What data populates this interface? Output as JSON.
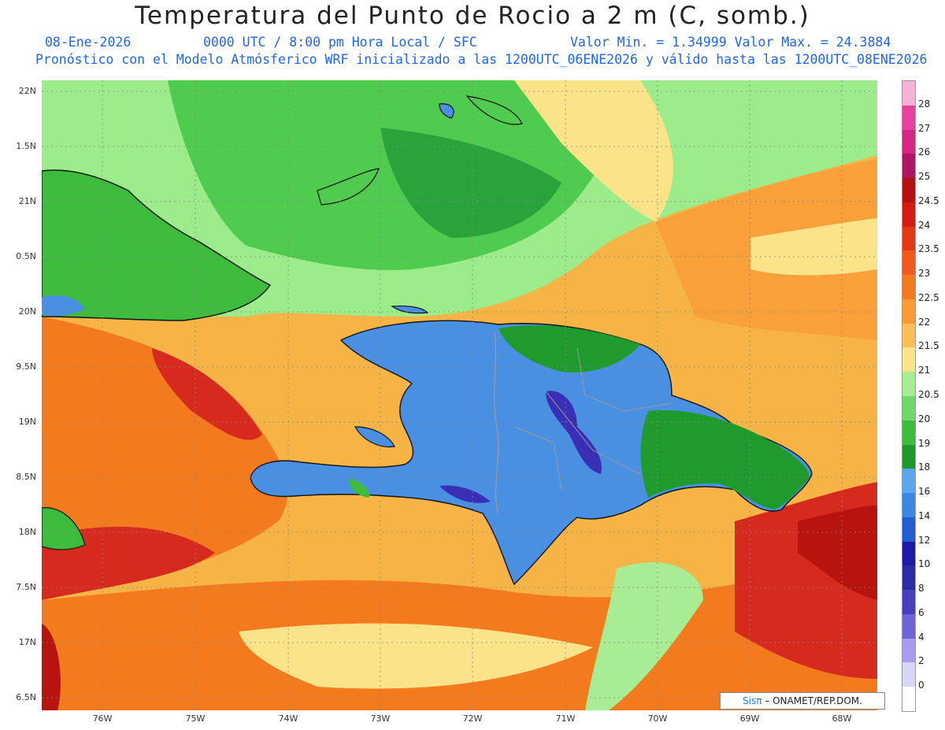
{
  "header": {
    "title": "Temperatura del Punto de Rocio a 2 m (C, somb.)",
    "date": "08-Ene-2026",
    "time": "0000 UTC / 8:00 pm Hora Local / SFC",
    "minmax": "Valor Min. = 1.34999  Valor Max. = 24.3884",
    "model_line": "Pronóstico con el Modelo Atmósferico WRF inicializado a las 1200UTC_06ENE2026 y válido hasta las  1200UTC_08ENE2026"
  },
  "map": {
    "lat_labels": [
      "22N",
      "1.5N",
      "21N",
      "0.5N",
      "20N",
      "9.5N",
      "19N",
      "8.5N",
      "18N",
      "7.5N",
      "17N",
      "6.5N"
    ],
    "lon_labels": [
      "76W",
      "75W",
      "74W",
      "73W",
      "72W",
      "71W",
      "70W",
      "69W",
      "68W"
    ],
    "colors": {
      "ocean_base": "#f5b445",
      "land_hispaniola": "#4a90e2",
      "land_east": "#1f9a2d",
      "land_cuba": "#3dbb3d",
      "warm_red": "#d72a1e",
      "dark_red": "#b8140f",
      "orange": "#f47a1e",
      "light_orange": "#f9a03a",
      "yellow": "#fbe38a",
      "light_green": "#9cec8c",
      "green": "#4fcb4f",
      "dark_blue": "#3a2fb4"
    }
  },
  "colorbar": {
    "labels": [
      "28",
      "27",
      "26",
      "25",
      "24.5",
      "24",
      "23.5",
      "23",
      "22.5",
      "22",
      "21.5",
      "21",
      "20.5",
      "20",
      "19",
      "18",
      "16",
      "14",
      "12",
      "10",
      "8",
      "6",
      "4",
      "2",
      "0"
    ],
    "colors": [
      "#f7b3d6",
      "#e8409e",
      "#d52783",
      "#b01462",
      "#b3120e",
      "#d31c12",
      "#e33a16",
      "#f05a1a",
      "#f47a1e",
      "#f99a33",
      "#fbbf55",
      "#fbe38a",
      "#a8ec93",
      "#6fd96a",
      "#3dbb3d",
      "#1e9a2b",
      "#5aa7f0",
      "#3b87e4",
      "#1f5fd0",
      "#1c1aa6",
      "#2e2aa6",
      "#4a3ec0",
      "#6f63d8",
      "#a89cf0",
      "#d8d6f7",
      "#ffffff"
    ]
  },
  "credit": {
    "brand": "Sisπ",
    "text": "– ONAMET/REP.DOM."
  }
}
